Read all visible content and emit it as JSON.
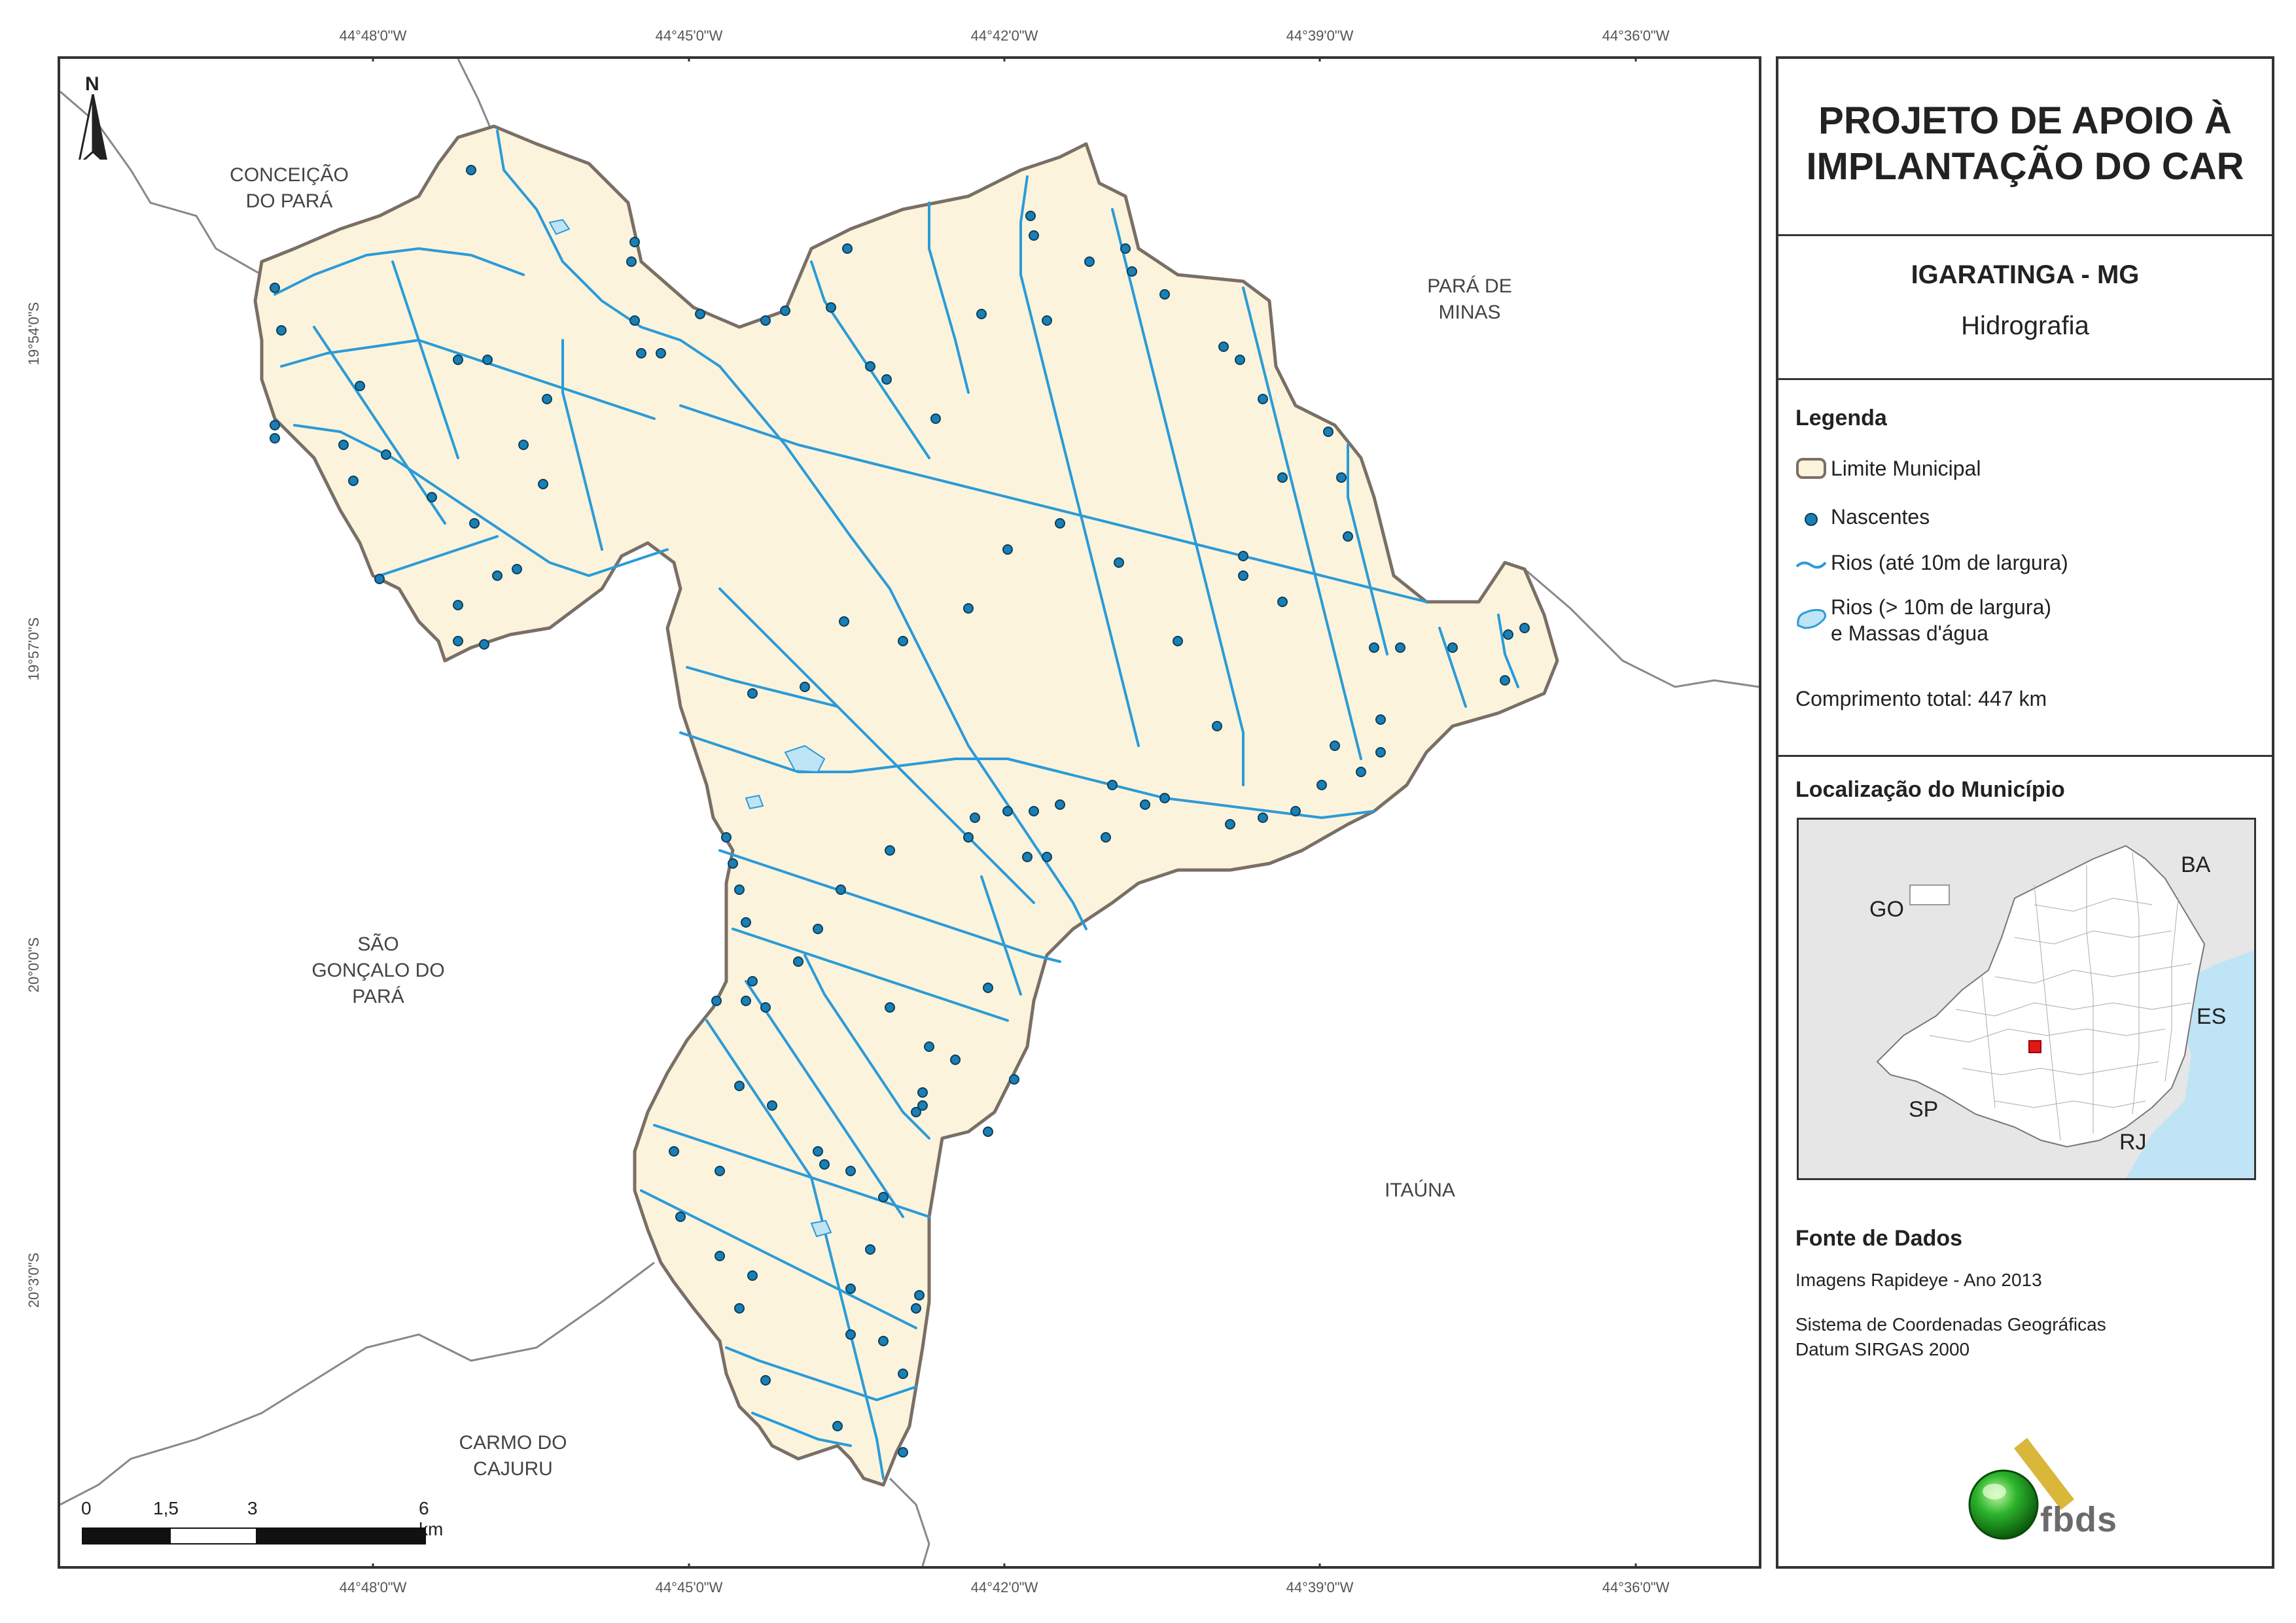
{
  "coords": {
    "top": [
      "44°48'0\"W",
      "44°45'0\"W",
      "44°42'0\"W",
      "44°39'0\"W",
      "44°36'0\"W"
    ],
    "bottom": [
      "44°48'0\"W",
      "44°45'0\"W",
      "44°42'0\"W",
      "44°39'0\"W",
      "44°36'0\"W"
    ],
    "left": [
      "19°54'0\"S",
      "19°57'0\"S",
      "20°0'0\"S",
      "20°3'0\"S"
    ]
  },
  "places": {
    "conceicao": [
      "CONCEIÇÃO",
      "DO PARÁ"
    ],
    "para_de_minas": [
      "PARÁ DE",
      "MINAS"
    ],
    "sao_goncalo": [
      "SÃO",
      "GONÇALO DO",
      "PARÁ"
    ],
    "itauna": "ITAÚNA",
    "carmo": [
      "CARMO DO",
      "CAJURU"
    ]
  },
  "north_label": "N",
  "scale": {
    "labels": [
      "0",
      "1,5",
      "3",
      "6 km"
    ]
  },
  "panel": {
    "title": [
      "PROJETO DE APOIO À",
      "IMPLANTAÇÃO DO CAR"
    ],
    "subtitle": "IGARATINGA - MG",
    "theme": "Hidrografia",
    "legend_heading": "Legenda",
    "legend": {
      "limite": "Limite Municipal",
      "nascentes": "Nascentes",
      "rios_pequenos": "Rios (até 10m de largura)",
      "rios_grandes_1": "Rios (> 10m de largura)",
      "rios_grandes_2": "e Massas d'água"
    },
    "comprimento": "Comprimento total: 447 km",
    "localizacao_heading": "Localização do Município",
    "inset_labels": {
      "go": "GO",
      "ba": "BA",
      "es": "ES",
      "sp": "SP",
      "rj": "RJ"
    },
    "fonte_heading": "Fonte de Dados",
    "fonte_1": "Imagens Rapideye - Ano 2013",
    "fonte_2": "Sistema de Coordenadas Geográficas",
    "fonte_3": "Datum SIRGAS 2000",
    "logo_text": "fbds"
  },
  "colors": {
    "municipality_fill": "#fcf3dc",
    "boundary": "#7a6f66",
    "river": "#2b9bd8",
    "spring": "#1a7fb4",
    "water_body": "#bfe4f5",
    "logo_green": "#2db52d",
    "logo_gold": "#d8b73a"
  }
}
